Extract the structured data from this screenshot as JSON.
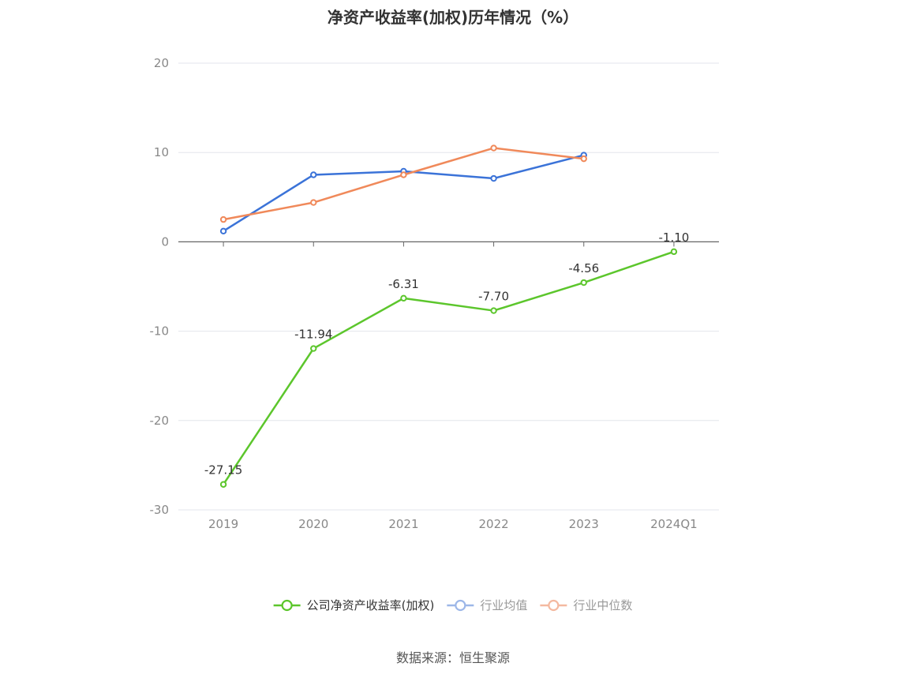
{
  "chart_data": {
    "type": "line",
    "title": "净资产收益率(加权)历年情况（%）",
    "categories": [
      "2019",
      "2020",
      "2021",
      "2022",
      "2023",
      "2024Q1"
    ],
    "ylim": [
      -30,
      20
    ],
    "yticks": [
      20,
      10,
      0,
      -10,
      -20,
      -30
    ],
    "grid": true,
    "legend_position": "bottom",
    "series": [
      {
        "name": "公司净资产收益率(加权)",
        "color": "#5cc62c",
        "values": [
          -27.15,
          -11.94,
          -6.31,
          -7.7,
          -4.56,
          -1.1
        ],
        "labels": [
          "-27.15",
          "-11.94",
          "-6.31",
          "-7.70",
          "-4.56",
          "-1.10"
        ]
      },
      {
        "name": "行业均值",
        "color": "#3b73d8",
        "values": [
          1.2,
          7.5,
          7.9,
          7.1,
          9.7,
          null
        ]
      },
      {
        "name": "行业中位数",
        "color": "#f0895a",
        "values": [
          2.5,
          4.4,
          7.5,
          10.5,
          9.3,
          null
        ]
      }
    ]
  },
  "source": "数据来源：恒生聚源"
}
